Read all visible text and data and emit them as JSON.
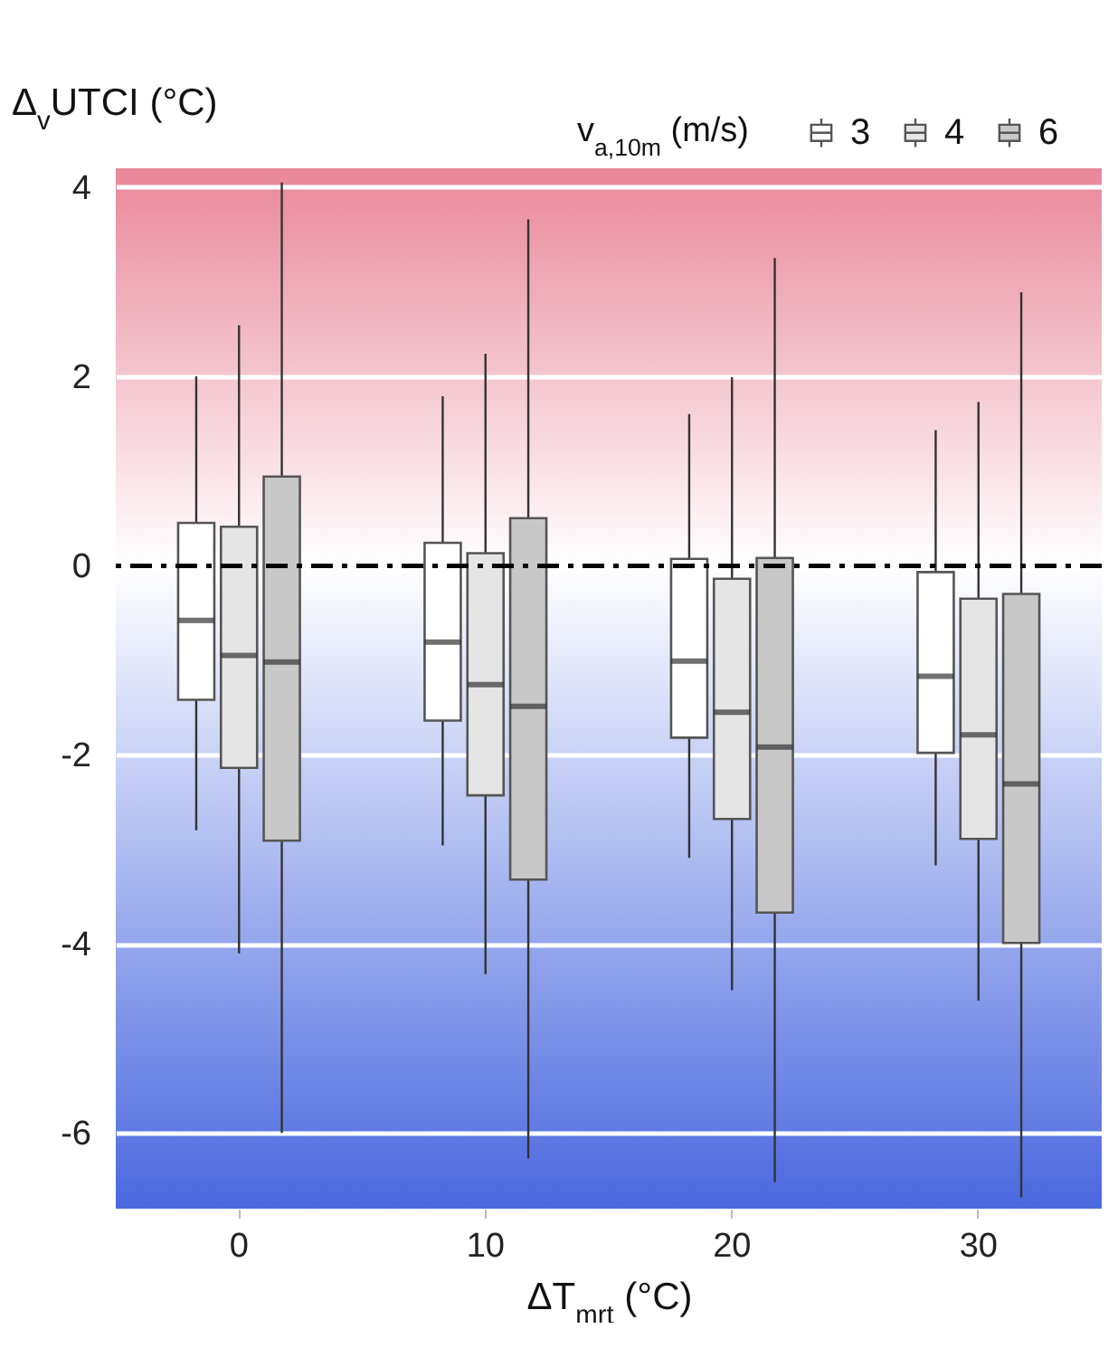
{
  "chart_data": {
    "type": "box",
    "ylabel": "Δ$_{v}$UTCI (°C)",
    "xlabel": "ΔT$_{mrt}$ (°C)",
    "legend_title": "v$_{a,10m}$ (m/s)",
    "categories": [
      "0",
      "10",
      "20",
      "30"
    ],
    "ylim": [
      -6.8,
      4.2
    ],
    "yticks": [
      -6,
      -4,
      -2,
      0,
      2,
      4
    ],
    "grid": "y",
    "legend": "top right",
    "ref_lines": [
      {
        "axis": "y",
        "value": 0,
        "color": "#000000",
        "line_style": "dashdot"
      }
    ],
    "series": [
      {
        "name": "3",
        "color": "#ffffff",
        "boxes": [
          {
            "low": -2.8,
            "q1": -1.42,
            "median": -0.58,
            "q3": 0.45,
            "high": 2.0
          },
          {
            "low": -2.96,
            "q1": -1.64,
            "median": -0.81,
            "q3": 0.24,
            "high": 1.79
          },
          {
            "low": -3.09,
            "q1": -1.82,
            "median": -1.01,
            "q3": 0.07,
            "high": 1.6
          },
          {
            "low": -3.17,
            "q1": -1.98,
            "median": -1.17,
            "q3": -0.07,
            "high": 1.43
          }
        ]
      },
      {
        "name": "4",
        "color": "#e5e5e5",
        "boxes": [
          {
            "low": -4.1,
            "q1": -2.14,
            "median": -0.95,
            "q3": 0.41,
            "high": 2.54
          },
          {
            "low": -4.32,
            "q1": -2.43,
            "median": -1.26,
            "q3": 0.13,
            "high": 2.24
          },
          {
            "low": -4.49,
            "q1": -2.68,
            "median": -1.55,
            "q3": -0.14,
            "high": 1.99
          },
          {
            "low": -4.6,
            "q1": -2.89,
            "median": -1.79,
            "q3": -0.35,
            "high": 1.73
          }
        ]
      },
      {
        "name": "6",
        "color": "#c8c8c8",
        "boxes": [
          {
            "low": -6.0,
            "q1": -2.91,
            "median": -1.02,
            "q3": 0.94,
            "high": 4.05
          },
          {
            "low": -6.27,
            "q1": -3.32,
            "median": -1.49,
            "q3": 0.5,
            "high": 3.66
          },
          {
            "low": -6.52,
            "q1": -3.67,
            "median": -1.92,
            "q3": 0.08,
            "high": 3.25
          },
          {
            "low": -6.68,
            "q1": -3.99,
            "median": -2.31,
            "q3": -0.3,
            "high": 2.89
          }
        ]
      }
    ]
  }
}
